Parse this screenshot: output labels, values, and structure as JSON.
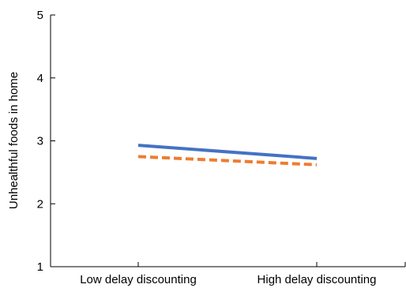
{
  "chart_data": {
    "type": "line",
    "categories": [
      "Low delay discounting",
      "High delay discounting"
    ],
    "series": [
      {
        "values": [
          2.93,
          2.72
        ],
        "color": "#4472c4",
        "style": "solid"
      },
      {
        "values": [
          2.75,
          2.62
        ],
        "color": "#ed7d31",
        "style": "dashed"
      }
    ],
    "title": "",
    "xlabel": "",
    "ylabel": "Unhealthful foods in home",
    "ylim": [
      1,
      5
    ],
    "yticks": [
      "1",
      "2",
      "3",
      "4",
      "5"
    ],
    "grid": false
  }
}
